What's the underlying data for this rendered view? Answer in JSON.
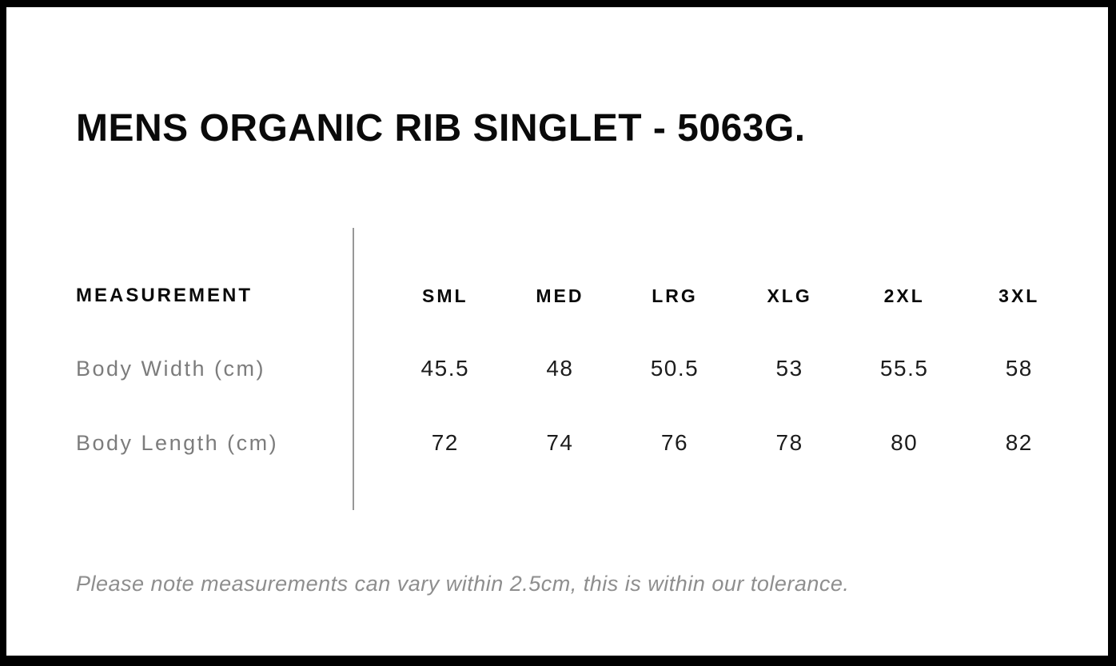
{
  "page": {
    "title": "MENS ORGANIC RIB SINGLET - 5063G.",
    "note": "Please note measurements can vary within 2.5cm, this is within our tolerance."
  },
  "size_chart": {
    "header_label": "MEASUREMENT",
    "sizes": [
      "SML",
      "MED",
      "LRG",
      "XLG",
      "2XL",
      "3XL"
    ],
    "rows": [
      {
        "label": "Body Width (cm)",
        "values": [
          "45.5",
          "48",
          "50.5",
          "53",
          "55.5",
          "58"
        ]
      },
      {
        "label": "Body Length (cm)",
        "values": [
          "72",
          "74",
          "76",
          "78",
          "80",
          "82"
        ]
      }
    ]
  },
  "chart_data": {
    "type": "table",
    "title": "MENS ORGANIC RIB SINGLET - 5063G.",
    "columns": [
      "MEASUREMENT",
      "SML",
      "MED",
      "LRG",
      "XLG",
      "2XL",
      "3XL"
    ],
    "rows": [
      [
        "Body Width (cm)",
        45.5,
        48,
        50.5,
        53,
        55.5,
        58
      ],
      [
        "Body Length (cm)",
        72,
        74,
        76,
        78,
        80,
        82
      ]
    ],
    "footnote": "Please note measurements can vary within 2.5cm, this is within our tolerance."
  },
  "colors": {
    "frame_border": "#000000",
    "title_text": "#0a0a0a",
    "value_text": "#1c1c1c",
    "label_gray": "#7c7c7c",
    "note_gray": "#8e8e8e",
    "divider_gray": "#989898",
    "background": "#ffffff"
  }
}
